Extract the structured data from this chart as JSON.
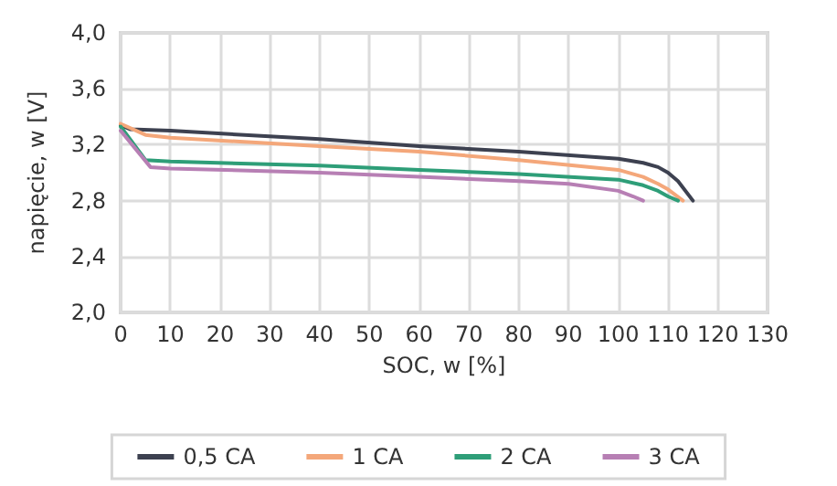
{
  "chart_data": {
    "type": "line",
    "xlabel": "SOC, w [%]",
    "ylabel": "napięcie, w [V]",
    "xlim": [
      0,
      130
    ],
    "xticks": [
      0,
      10,
      20,
      30,
      40,
      50,
      60,
      70,
      80,
      90,
      100,
      110,
      120,
      130
    ],
    "ylim": [
      2.0,
      4.0
    ],
    "yticks": [
      {
        "value": 2.0,
        "label": "2,0"
      },
      {
        "value": 2.4,
        "label": "2,4"
      },
      {
        "value": 2.8,
        "label": "2,8"
      },
      {
        "value": 3.2,
        "label": "3,2"
      },
      {
        "value": 3.6,
        "label": "3,6"
      },
      {
        "value": 4.0,
        "label": "4,0"
      }
    ],
    "grid": true,
    "legend": "bottom",
    "marker": "none",
    "line_style": "solid",
    "series": [
      {
        "name": "0,5 CA",
        "color": "#3d4150",
        "x": [
          0,
          2,
          10,
          40,
          60,
          80,
          100,
          105,
          108,
          110,
          112,
          115
        ],
        "values": [
          3.34,
          3.31,
          3.3,
          3.24,
          3.19,
          3.15,
          3.1,
          3.07,
          3.04,
          3.0,
          2.94,
          2.8
        ]
      },
      {
        "name": "1 CA",
        "color": "#f4a77a",
        "x": [
          0,
          5,
          10,
          40,
          60,
          80,
          100,
          105,
          108,
          110,
          113
        ],
        "values": [
          3.35,
          3.27,
          3.25,
          3.19,
          3.15,
          3.09,
          3.02,
          2.97,
          2.92,
          2.88,
          2.8
        ]
      },
      {
        "name": "2 CA",
        "color": "#2e9e78",
        "x": [
          0,
          5,
          10,
          40,
          60,
          80,
          100,
          105,
          108,
          110,
          112
        ],
        "values": [
          3.33,
          3.09,
          3.08,
          3.05,
          3.02,
          2.99,
          2.95,
          2.91,
          2.87,
          2.83,
          2.8
        ]
      },
      {
        "name": "3 CA",
        "color": "#b77fb4",
        "x": [
          0,
          6,
          10,
          40,
          60,
          80,
          90,
          100,
          103,
          105
        ],
        "values": [
          3.3,
          3.04,
          3.03,
          3.0,
          2.97,
          2.94,
          2.92,
          2.87,
          2.83,
          2.8
        ]
      }
    ]
  }
}
